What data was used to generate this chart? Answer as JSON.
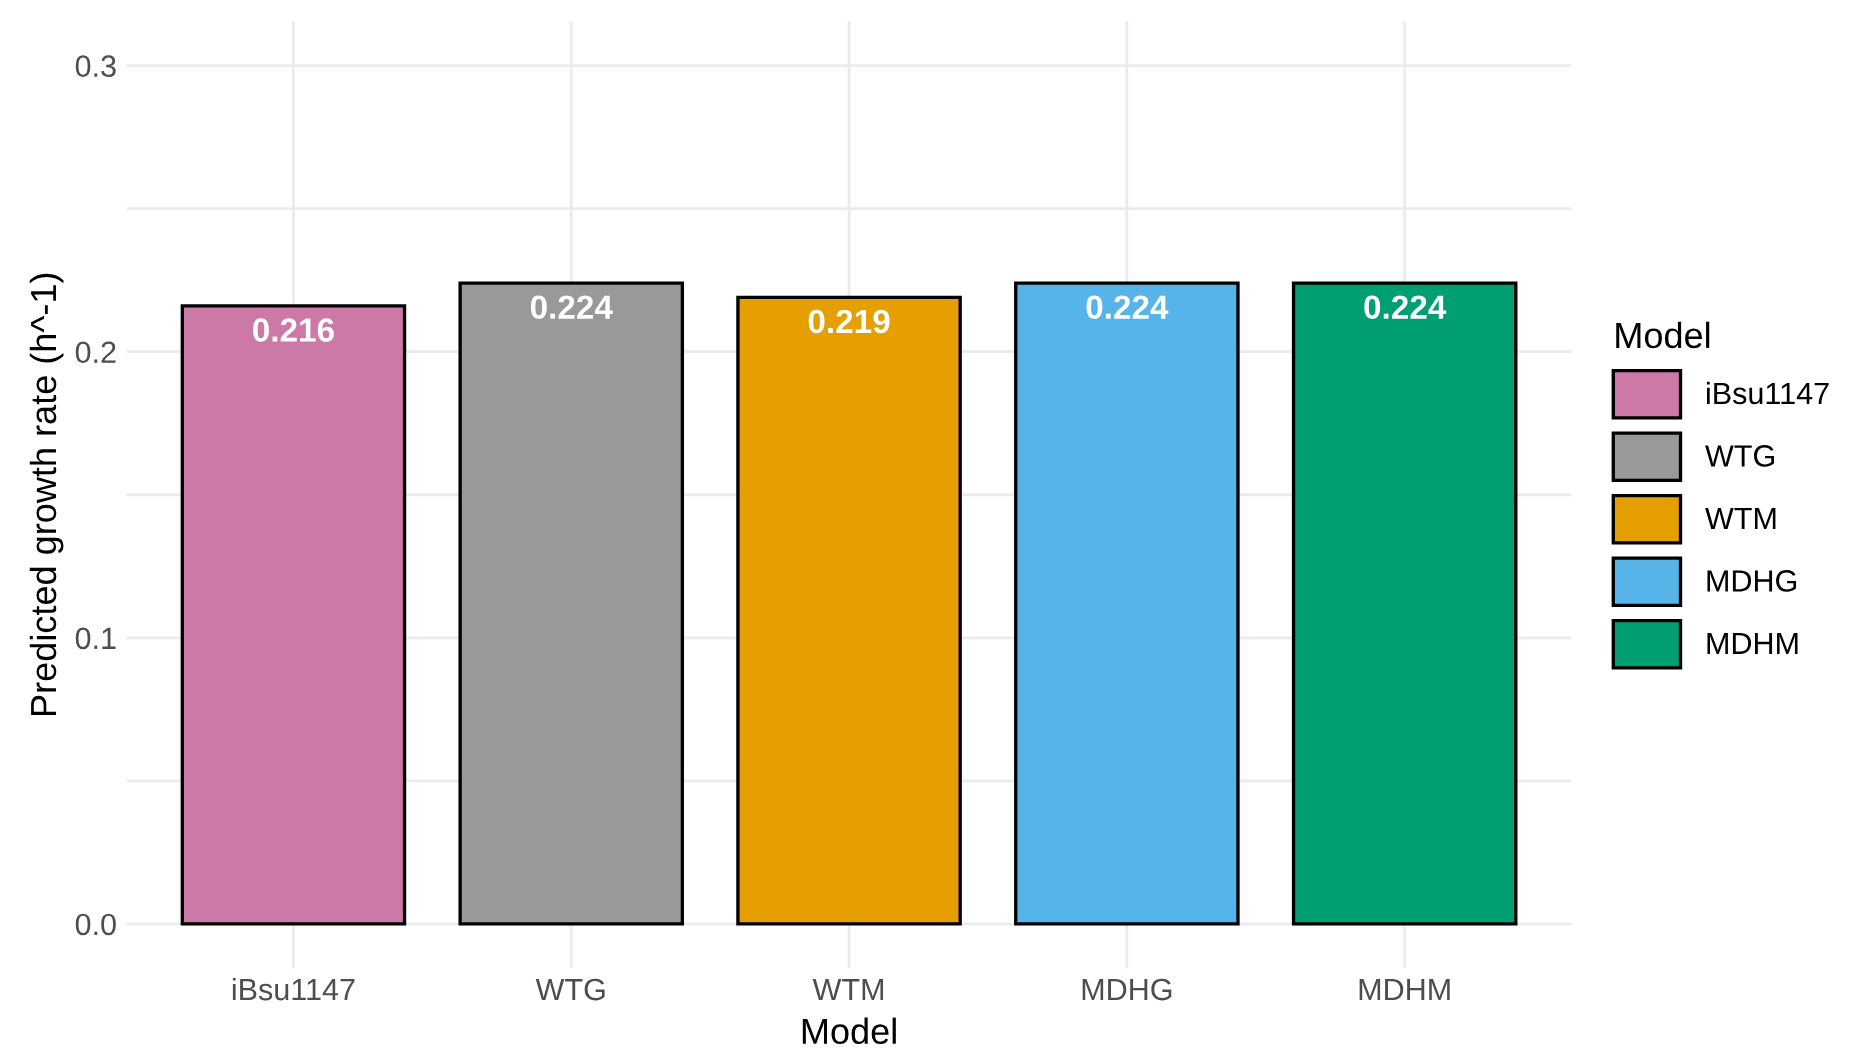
{
  "chart_data": {
    "type": "bar",
    "xlabel": "Model",
    "ylabel": "Predicted growth rate (h^-1)",
    "legend_title": "Model",
    "categories": [
      "iBsu1147",
      "WTG",
      "WTM",
      "MDHG",
      "MDHM"
    ],
    "series": [
      {
        "name": "iBsu1147",
        "color": "#cc79a7",
        "values": [
          0.216,
          null,
          null,
          null,
          null
        ]
      },
      {
        "name": "WTG",
        "color": "#999999",
        "values": [
          null,
          0.224,
          null,
          null,
          null
        ]
      },
      {
        "name": "WTM",
        "color": "#e69f00",
        "values": [
          null,
          null,
          0.219,
          null,
          null
        ]
      },
      {
        "name": "MDHG",
        "color": "#56b4e9",
        "values": [
          null,
          null,
          null,
          0.224,
          null
        ]
      },
      {
        "name": "MDHM",
        "color": "#009e73",
        "values": [
          null,
          null,
          null,
          null,
          0.224
        ]
      }
    ],
    "ylim": [
      -0.0155,
      0.3155
    ],
    "yticks": [
      {
        "value": 0.0,
        "label": "0.0"
      },
      {
        "value": 0.05,
        "label": null
      },
      {
        "value": 0.1,
        "label": "0.1"
      },
      {
        "value": 0.15,
        "label": null
      },
      {
        "value": 0.2,
        "label": "0.2"
      },
      {
        "value": 0.25,
        "label": null
      },
      {
        "value": 0.3,
        "label": "0.3"
      }
    ],
    "data_labels": true,
    "grid": true,
    "legend": "right"
  }
}
